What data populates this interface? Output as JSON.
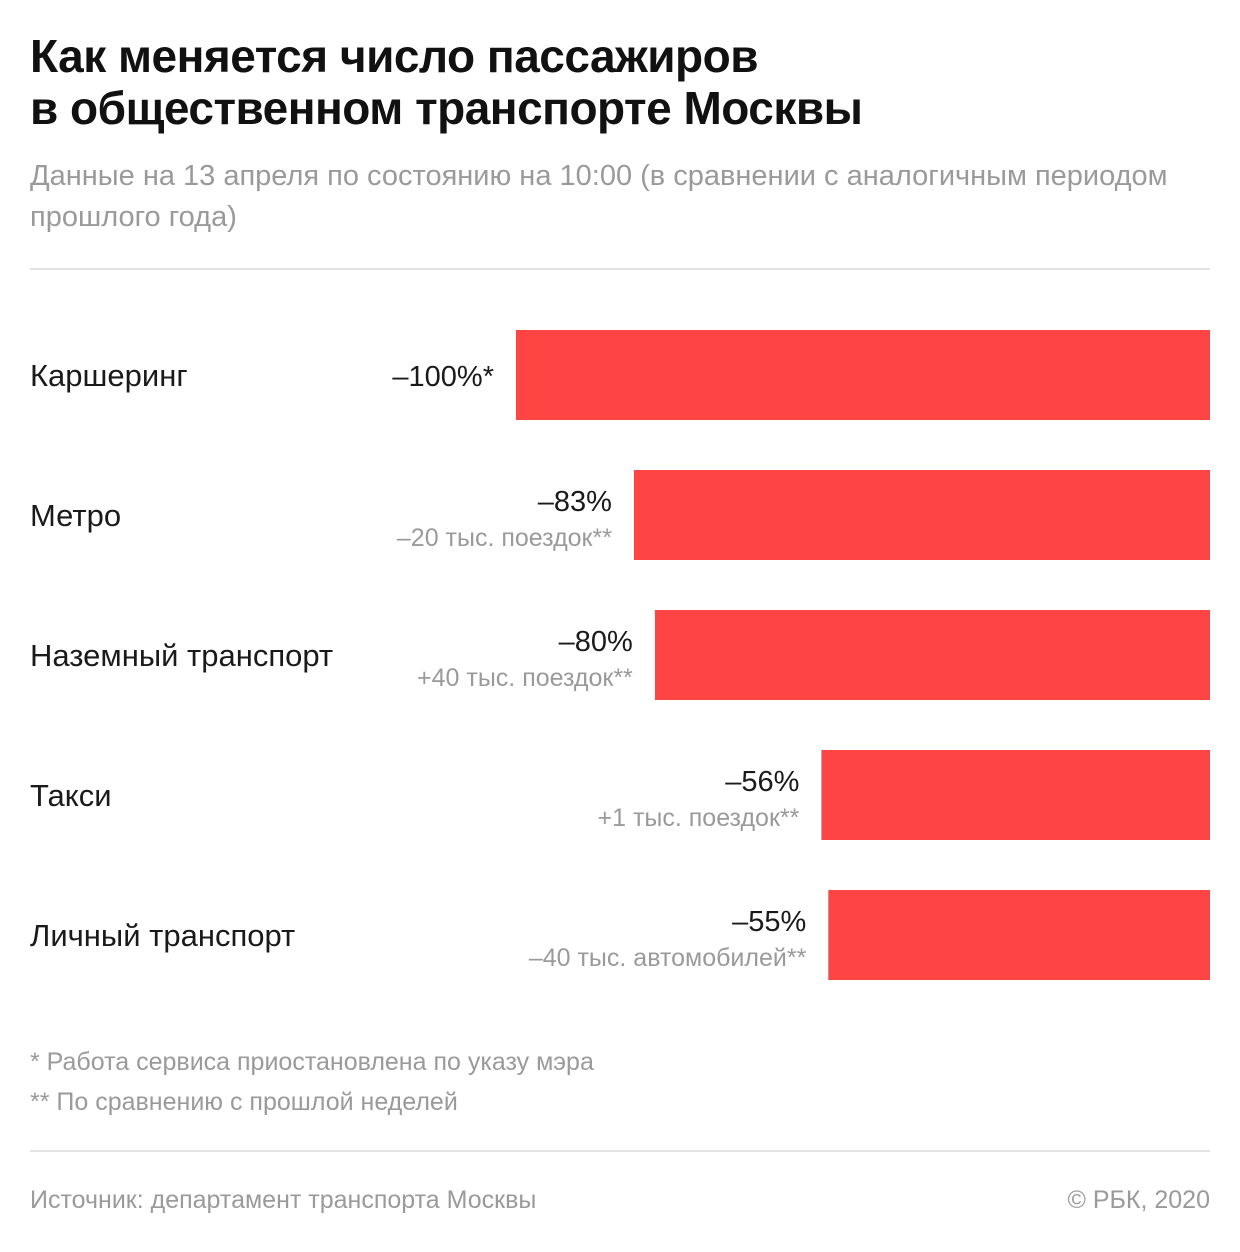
{
  "header": {
    "title_line1": "Как меняется число пассажиров",
    "title_line2": "в общественном транспорте Москвы",
    "subtitle": "Данные на 13 апреля по состоянию на 10:00 (в сравнении с аналогичным периодом прошлого года)"
  },
  "chart_data": {
    "type": "bar",
    "orientation": "horizontal",
    "categories": [
      "Каршеринг",
      "Метро",
      "Наземный транспорт",
      "Такси",
      "Личный транспорт"
    ],
    "values": [
      -100,
      -83,
      -80,
      -56,
      -55
    ],
    "value_labels": [
      "–100%*",
      "–83%",
      "–80%",
      "–56%",
      "–55%"
    ],
    "notes": [
      "",
      "–20 тыс. поездок**",
      "+40 тыс. поездок**",
      "+1 тыс. поездок**",
      "–40 тыс. автомобилей**"
    ],
    "xlim": [
      -100,
      0
    ],
    "grid": false,
    "bar_color": "#ff4444"
  },
  "footnotes": {
    "note1": "* Работа сервиса приостановлена по указу мэра",
    "note2": "** По сравнению с прошлой неделей"
  },
  "footer": {
    "source": "Источник: департамент транспорта Москвы",
    "copyright": "© РБК, 2020"
  }
}
